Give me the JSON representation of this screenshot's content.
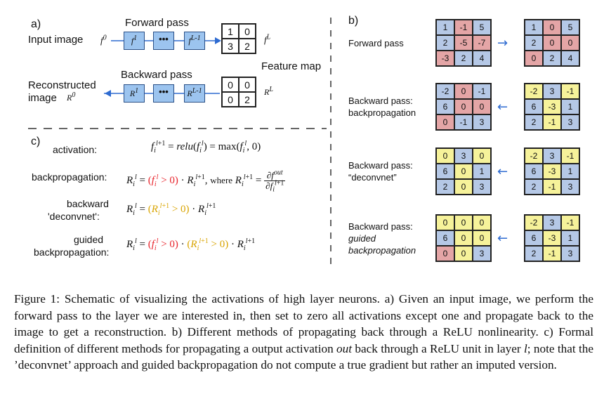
{
  "panel_a": {
    "label": "a)",
    "forward_pass": "Forward pass",
    "input_image": "Input image",
    "f0": "f",
    "f0_sup": "0",
    "blk1": "f",
    "blk1_sup": "1",
    "blk2": "f",
    "blk2_sup": "L-1",
    "fL": "f",
    "fL_sup": "L",
    "forward_values": [
      "1",
      "0",
      "3",
      "2"
    ],
    "feature_map": "Feature map",
    "backward_pass": "Backward pass",
    "reconstructed_1": "Reconstructed",
    "reconstructed_2": "image",
    "R0": "R",
    "R0_sup": "0",
    "rblk1": "R",
    "rblk1_sup": "1",
    "rblk2": "R",
    "rblk2_sup": "L-1",
    "RL": "R",
    "RL_sup": "L",
    "backward_values": [
      "0",
      "0",
      "0",
      "2"
    ],
    "dots": "•••"
  },
  "panel_b": {
    "label": "b)",
    "rows": [
      {
        "label1": "Forward pass",
        "label2": "",
        "italic": false,
        "left": [
          [
            "1",
            "c-b"
          ],
          [
            "-1",
            "c-r"
          ],
          [
            "5",
            "c-b"
          ],
          [
            "2",
            "c-b"
          ],
          [
            "-5",
            "c-r"
          ],
          [
            "-7",
            "c-r"
          ],
          [
            "-3",
            "c-r"
          ],
          [
            "2",
            "c-b"
          ],
          [
            "4",
            "c-b"
          ]
        ],
        "right": [
          [
            "1",
            "c-b"
          ],
          [
            "0",
            "c-r"
          ],
          [
            "5",
            "c-b"
          ],
          [
            "2",
            "c-b"
          ],
          [
            "0",
            "c-r"
          ],
          [
            "0",
            "c-r"
          ],
          [
            "0",
            "c-r"
          ],
          [
            "2",
            "c-b"
          ],
          [
            "4",
            "c-b"
          ]
        ]
      },
      {
        "label1": "Backward pass:",
        "label2": "backpropagation",
        "italic": false,
        "left": [
          [
            "-2",
            "c-b"
          ],
          [
            "0",
            "c-r"
          ],
          [
            "-1",
            "c-b"
          ],
          [
            "6",
            "c-b"
          ],
          [
            "0",
            "c-r"
          ],
          [
            "0",
            "c-r"
          ],
          [
            "0",
            "c-r"
          ],
          [
            "-1",
            "c-b"
          ],
          [
            "3",
            "c-b"
          ]
        ],
        "right": [
          [
            "-2",
            "c-y"
          ],
          [
            "3",
            "c-b"
          ],
          [
            "-1",
            "c-y"
          ],
          [
            "6",
            "c-b"
          ],
          [
            "-3",
            "c-y"
          ],
          [
            "1",
            "c-b"
          ],
          [
            "2",
            "c-b"
          ],
          [
            "-1",
            "c-y"
          ],
          [
            "3",
            "c-b"
          ]
        ]
      },
      {
        "label1": "Backward pass:",
        "label2": "“deconvnet”",
        "italic": false,
        "left": [
          [
            "0",
            "c-y"
          ],
          [
            "3",
            "c-b"
          ],
          [
            "0",
            "c-y"
          ],
          [
            "6",
            "c-b"
          ],
          [
            "0",
            "c-y"
          ],
          [
            "1",
            "c-b"
          ],
          [
            "2",
            "c-b"
          ],
          [
            "0",
            "c-y"
          ],
          [
            "3",
            "c-b"
          ]
        ],
        "right": [
          [
            "-2",
            "c-y"
          ],
          [
            "3",
            "c-b"
          ],
          [
            "-1",
            "c-y"
          ],
          [
            "6",
            "c-b"
          ],
          [
            "-3",
            "c-y"
          ],
          [
            "1",
            "c-b"
          ],
          [
            "2",
            "c-b"
          ],
          [
            "-1",
            "c-y"
          ],
          [
            "3",
            "c-b"
          ]
        ]
      },
      {
        "label1": "Backward pass:",
        "label2": "guided",
        "label3": "backpropagation",
        "italic": true,
        "left": [
          [
            "0",
            "c-y"
          ],
          [
            "0",
            "c-y"
          ],
          [
            "0",
            "c-y"
          ],
          [
            "6",
            "c-b"
          ],
          [
            "0",
            "c-y"
          ],
          [
            "0",
            "c-y"
          ],
          [
            "0",
            "c-r"
          ],
          [
            "0",
            "c-y"
          ],
          [
            "3",
            "c-b"
          ]
        ],
        "right": [
          [
            "-2",
            "c-y"
          ],
          [
            "3",
            "c-b"
          ],
          [
            "-1",
            "c-y"
          ],
          [
            "6",
            "c-b"
          ],
          [
            "-3",
            "c-y"
          ],
          [
            "1",
            "c-b"
          ],
          [
            "2",
            "c-b"
          ],
          [
            "-1",
            "c-y"
          ],
          [
            "3",
            "c-b"
          ]
        ]
      }
    ]
  },
  "panel_c": {
    "label": "c)",
    "activation": "activation:",
    "backprop": "backpropagation:",
    "deconv_1": "backward",
    "deconv_2": "'deconvnet':",
    "guided_1": "guided",
    "guided_2": "backpropagation:",
    "where": "where"
  },
  "caption": {
    "prefix": "Figure 1: Schematic of visualizing the activations of high layer neurons. a) Given an input image, we perform the forward pass to the layer we are interested in, then set to zero all activations except one and propagate back to the image to get a reconstruction. b) Different methods of propagating back through a ReLU nonlinearity. c) Formal definition of different methods for propagating a output activation",
    "italic_word": "out",
    "middle": "back through a ReLU unit in layer",
    "layer_var": "l",
    "suffix": "; note that the ’deconvnet’ approach and guided backpropagation do not compute a true gradient but rather an imputed version."
  }
}
